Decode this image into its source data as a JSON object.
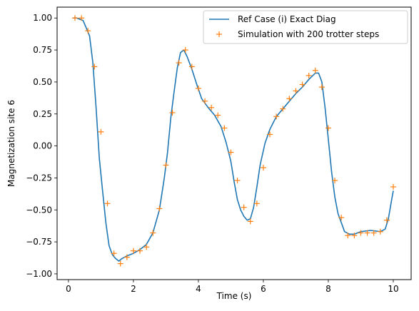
{
  "chart_data": {
    "type": "line",
    "xlabel": "Time (s)",
    "ylabel": "Magnetization site 6",
    "xlim": [
      -0.35,
      10.55
    ],
    "ylim": [
      -1.045,
      1.085
    ],
    "xticks": [
      0,
      2,
      4,
      6,
      8,
      10
    ],
    "xtick_labels": [
      "0",
      "2",
      "4",
      "6",
      "8",
      "10"
    ],
    "yticks": [
      -1.0,
      -0.75,
      -0.5,
      -0.25,
      0.0,
      0.25,
      0.5,
      0.75,
      1.0
    ],
    "ytick_labels": [
      "−1.00",
      "−0.75",
      "−0.50",
      "−0.25",
      "0.00",
      "0.25",
      "0.50",
      "0.75",
      "1.00"
    ],
    "grid": false,
    "legend_position": "top-right",
    "series": [
      {
        "name": "Ref Case (i) Exact Diag",
        "style": "line",
        "color": "#1f77b4",
        "x": [
          0.15,
          0.25,
          0.35,
          0.45,
          0.55,
          0.65,
          0.75,
          0.85,
          0.95,
          1.05,
          1.15,
          1.25,
          1.35,
          1.45,
          1.55,
          1.65,
          1.8,
          2.0,
          2.2,
          2.4,
          2.6,
          2.8,
          2.95,
          3.05,
          3.15,
          3.25,
          3.35,
          3.45,
          3.55,
          3.65,
          3.8,
          3.95,
          4.1,
          4.3,
          4.5,
          4.7,
          4.85,
          5.0,
          5.1,
          5.2,
          5.3,
          5.4,
          5.5,
          5.6,
          5.7,
          5.8,
          5.9,
          6.05,
          6.2,
          6.4,
          6.6,
          6.8,
          7.0,
          7.2,
          7.4,
          7.6,
          7.7,
          7.8,
          7.9,
          8.0,
          8.1,
          8.2,
          8.3,
          8.4,
          8.5,
          8.65,
          8.8,
          9.0,
          9.3,
          9.6,
          9.75,
          9.85,
          9.95,
          10.0
        ],
        "y": [
          1.0,
          1.0,
          0.99,
          0.98,
          0.92,
          0.86,
          0.65,
          0.3,
          -0.1,
          -0.35,
          -0.6,
          -0.78,
          -0.85,
          -0.88,
          -0.9,
          -0.88,
          -0.86,
          -0.84,
          -0.81,
          -0.77,
          -0.68,
          -0.5,
          -0.25,
          -0.05,
          0.22,
          0.42,
          0.61,
          0.73,
          0.75,
          0.7,
          0.6,
          0.48,
          0.37,
          0.3,
          0.24,
          0.15,
          0.03,
          -0.12,
          -0.28,
          -0.42,
          -0.5,
          -0.55,
          -0.58,
          -0.57,
          -0.48,
          -0.32,
          -0.15,
          0.02,
          0.13,
          0.23,
          0.29,
          0.35,
          0.41,
          0.46,
          0.52,
          0.57,
          0.57,
          0.5,
          0.3,
          0.05,
          -0.2,
          -0.4,
          -0.53,
          -0.6,
          -0.67,
          -0.69,
          -0.69,
          -0.67,
          -0.66,
          -0.67,
          -0.65,
          -0.57,
          -0.42,
          -0.35
        ]
      },
      {
        "name": "Simulation with 200 trotter steps",
        "style": "marker",
        "marker": "+",
        "color": "#ff7f0e",
        "x": [
          0.2,
          0.4,
          0.6,
          0.8,
          1.0,
          1.2,
          1.4,
          1.6,
          1.8,
          2.0,
          2.2,
          2.4,
          2.6,
          2.8,
          3.0,
          3.2,
          3.4,
          3.6,
          3.8,
          4.0,
          4.2,
          4.4,
          4.6,
          4.8,
          5.0,
          5.2,
          5.4,
          5.6,
          5.8,
          6.0,
          6.2,
          6.4,
          6.6,
          6.8,
          7.0,
          7.2,
          7.4,
          7.6,
          7.8,
          8.0,
          8.2,
          8.4,
          8.6,
          8.8,
          9.0,
          9.2,
          9.4,
          9.6,
          9.8,
          10.0
        ],
        "y": [
          1.0,
          1.0,
          0.9,
          0.62,
          0.11,
          -0.45,
          -0.84,
          -0.92,
          -0.87,
          -0.82,
          -0.82,
          -0.79,
          -0.68,
          -0.49,
          -0.15,
          0.26,
          0.65,
          0.75,
          0.62,
          0.45,
          0.35,
          0.3,
          0.24,
          0.14,
          -0.05,
          -0.27,
          -0.48,
          -0.59,
          -0.45,
          -0.17,
          0.09,
          0.23,
          0.29,
          0.37,
          0.43,
          0.48,
          0.55,
          0.59,
          0.46,
          0.14,
          -0.27,
          -0.56,
          -0.7,
          -0.7,
          -0.68,
          -0.68,
          -0.68,
          -0.67,
          -0.58,
          -0.32
        ]
      }
    ]
  }
}
